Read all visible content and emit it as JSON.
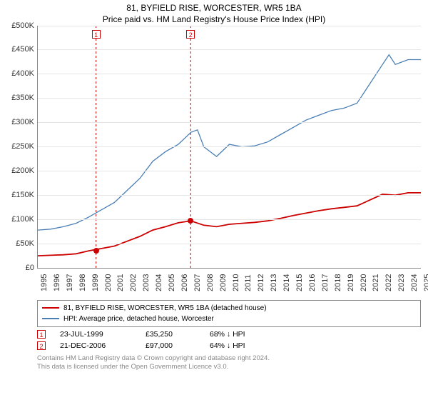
{
  "title": "81, BYFIELD RISE, WORCESTER, WR5 1BA",
  "subtitle": "Price paid vs. HM Land Registry's House Price Index (HPI)",
  "chart": {
    "type": "line",
    "xlim": [
      1995,
      2025
    ],
    "ylim": [
      0,
      500000
    ],
    "ytick_step": 50000,
    "y_tick_labels": [
      "£0",
      "£50K",
      "£100K",
      "£150K",
      "£200K",
      "£250K",
      "£300K",
      "£350K",
      "£400K",
      "£450K",
      "£500K"
    ],
    "x_ticks": [
      1995,
      1996,
      1997,
      1998,
      1999,
      2000,
      2001,
      2002,
      2003,
      2004,
      2005,
      2006,
      2007,
      2008,
      2009,
      2010,
      2011,
      2012,
      2013,
      2014,
      2015,
      2016,
      2017,
      2018,
      2019,
      2020,
      2021,
      2022,
      2023,
      2024,
      2025
    ],
    "background_color": "#ffffff",
    "grid_color": "#e6e6e6",
    "axis_color": "#888888",
    "series": [
      {
        "name": "price_paid",
        "label": "81, BYFIELD RISE, WORCESTER, WR5 1BA (detached house)",
        "color": "#cc0000",
        "line_width": 1.8,
        "points": [
          [
            1995,
            25000
          ],
          [
            1996,
            26000
          ],
          [
            1997,
            27000
          ],
          [
            1998,
            29000
          ],
          [
            1999,
            35250
          ],
          [
            2000,
            40000
          ],
          [
            2001,
            45000
          ],
          [
            2002,
            55000
          ],
          [
            2003,
            65000
          ],
          [
            2004,
            78000
          ],
          [
            2005,
            85000
          ],
          [
            2006,
            93000
          ],
          [
            2006.97,
            97000
          ],
          [
            2008,
            88000
          ],
          [
            2009,
            85000
          ],
          [
            2010,
            90000
          ],
          [
            2011,
            92000
          ],
          [
            2012,
            94000
          ],
          [
            2013,
            97000
          ],
          [
            2014,
            102000
          ],
          [
            2015,
            108000
          ],
          [
            2016,
            113000
          ],
          [
            2017,
            118000
          ],
          [
            2018,
            122000
          ],
          [
            2019,
            125000
          ],
          [
            2020,
            128000
          ],
          [
            2021,
            140000
          ],
          [
            2022,
            152000
          ],
          [
            2023,
            150000
          ],
          [
            2024,
            155000
          ],
          [
            2025,
            155000
          ]
        ]
      },
      {
        "name": "hpi",
        "label": "HPI: Average price, detached house, Worcester",
        "color": "#4a7fb5",
        "line_width": 1.3,
        "points": [
          [
            1995,
            78000
          ],
          [
            1996,
            80000
          ],
          [
            1997,
            85000
          ],
          [
            1998,
            92000
          ],
          [
            1999,
            105000
          ],
          [
            2000,
            120000
          ],
          [
            2001,
            135000
          ],
          [
            2002,
            160000
          ],
          [
            2003,
            185000
          ],
          [
            2004,
            220000
          ],
          [
            2005,
            240000
          ],
          [
            2006,
            255000
          ],
          [
            2007,
            280000
          ],
          [
            2007.5,
            285000
          ],
          [
            2008,
            250000
          ],
          [
            2009,
            230000
          ],
          [
            2010,
            255000
          ],
          [
            2011,
            250000
          ],
          [
            2012,
            252000
          ],
          [
            2013,
            260000
          ],
          [
            2014,
            275000
          ],
          [
            2015,
            290000
          ],
          [
            2016,
            305000
          ],
          [
            2017,
            315000
          ],
          [
            2018,
            325000
          ],
          [
            2019,
            330000
          ],
          [
            2020,
            340000
          ],
          [
            2021,
            380000
          ],
          [
            2022,
            420000
          ],
          [
            2022.5,
            440000
          ],
          [
            2023,
            420000
          ],
          [
            2024,
            430000
          ],
          [
            2025,
            430000
          ]
        ]
      }
    ],
    "sale_markers": [
      {
        "n": 1,
        "x": 1999.56,
        "price": 35250,
        "color": "#cc0000"
      },
      {
        "n": 2,
        "x": 2006.97,
        "price": 97000,
        "color": "#cc0000"
      }
    ]
  },
  "legend": {
    "series1_label": "81, BYFIELD RISE, WORCESTER, WR5 1BA (detached house)",
    "series2_label": "HPI: Average price, detached house, Worcester"
  },
  "sales": [
    {
      "n": "1",
      "date": "23-JUL-1999",
      "price": "£35,250",
      "diff": "68% ↓ HPI",
      "color": "#cc0000"
    },
    {
      "n": "2",
      "date": "21-DEC-2006",
      "price": "£97,000",
      "diff": "64% ↓ HPI",
      "color": "#cc0000"
    }
  ],
  "footer_line1": "Contains HM Land Registry data © Crown copyright and database right 2024.",
  "footer_line2": "This data is licensed under the Open Government Licence v3.0."
}
